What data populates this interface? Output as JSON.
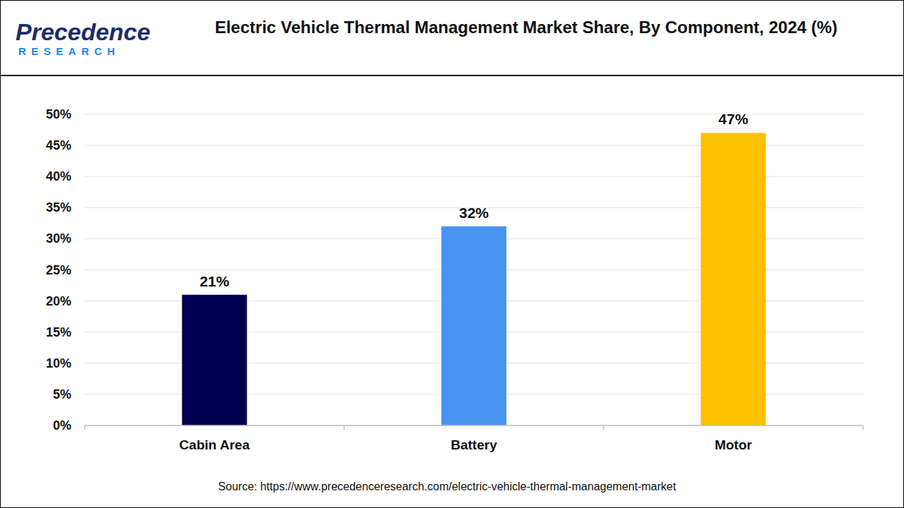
{
  "logo": {
    "line1": "Precedence",
    "line2": "RESEARCH"
  },
  "chart_data": {
    "type": "bar",
    "title": "Electric Vehicle Thermal Management Market Share, By Component, 2024 (%)",
    "source": "Source: https://www.precedenceresearch.com/electric-vehicle-thermal-management-market",
    "categories": [
      "Cabin Area",
      "Battery",
      "Motor"
    ],
    "values": [
      21,
      32,
      47
    ],
    "value_labels": [
      "21%",
      "32%",
      "47%"
    ],
    "colors": [
      "#000050",
      "#4795ef",
      "#ffc000"
    ],
    "ylim": [
      0,
      50
    ],
    "yticks": [
      {
        "value": 0,
        "label": "0%"
      },
      {
        "value": 5,
        "label": "5%"
      },
      {
        "value": 10,
        "label": "10%"
      },
      {
        "value": 15,
        "label": "15%"
      },
      {
        "value": 20,
        "label": "20%"
      },
      {
        "value": 25,
        "label": "25%"
      },
      {
        "value": 30,
        "label": "30%"
      },
      {
        "value": 35,
        "label": "35%"
      },
      {
        "value": 40,
        "label": "40%"
      },
      {
        "value": 45,
        "label": "45%"
      },
      {
        "value": 50,
        "label": "50%"
      }
    ],
    "grid": true,
    "data_labels": true
  }
}
